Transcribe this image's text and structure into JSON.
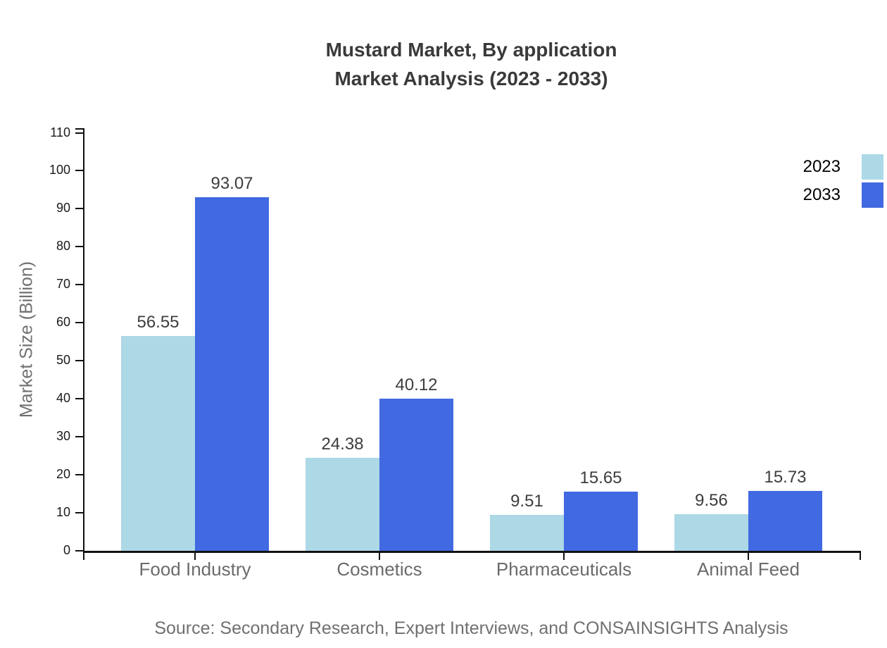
{
  "chart_data": {
    "type": "bar",
    "title": "Mustard Market, By application",
    "subtitle": "Market Analysis (2023 - 2033)",
    "categories": [
      "Food Industry",
      "Cosmetics",
      "Pharmaceuticals",
      "Animal Feed"
    ],
    "series": [
      {
        "name": "2023",
        "color": "#ADD8E6",
        "values": [
          56.55,
          24.38,
          9.51,
          9.56
        ]
      },
      {
        "name": "2033",
        "color": "#4169E1",
        "values": [
          93.07,
          40.12,
          15.65,
          15.73
        ]
      }
    ],
    "xlabel": "",
    "ylabel": "Market Size (Billion)",
    "ylim": [
      0,
      110
    ],
    "ytick_step": 10,
    "grid": false,
    "value_labels": true,
    "legend_position": "top-right",
    "source": "Source: Secondary Research, Expert Interviews, and CONSAINSIGHTS Analysis"
  },
  "colors": {
    "series_2023": "#ADD8E6",
    "series_2033": "#4169E1",
    "axis": "#111111",
    "title_text": "#3a3a3a",
    "muted_text": "#707070"
  }
}
